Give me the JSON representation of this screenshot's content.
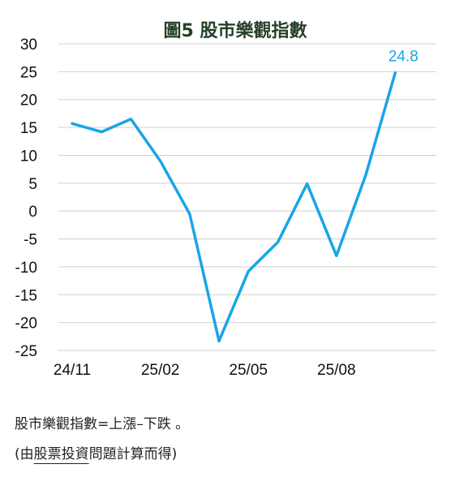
{
  "chart_data": {
    "type": "line",
    "title": "圖5  股市樂觀指數",
    "xlabel": "",
    "ylabel": "",
    "x": [
      "24/11",
      "24/12",
      "25/01",
      "25/02",
      "25/03",
      "25/04",
      "25/05",
      "25/06",
      "25/07",
      "25/08",
      "25/09",
      "25/10"
    ],
    "xtick_labels": [
      "24/11",
      "25/02",
      "25/05",
      "25/08"
    ],
    "series": [
      {
        "values": [
          15.7,
          14.2,
          16.5,
          9.0,
          -0.5,
          -23.3,
          -10.8,
          -5.6,
          4.9,
          -8.0,
          6.5,
          24.8
        ],
        "color": "#19a5e6"
      }
    ],
    "ylim": [
      -25,
      30
    ],
    "yticks": [
      30,
      25,
      20,
      15,
      10,
      5,
      0,
      -5,
      -10,
      -15,
      -20,
      -25
    ],
    "grid": true,
    "legend": "none",
    "annotations": [
      {
        "x": "25/10",
        "text": "24.8"
      }
    ]
  },
  "notes": {
    "line1": "股市樂觀指數=上漲–下跌 。",
    "line2_prefix": "(由",
    "line2_underlined": "股票投資",
    "line2_suffix": "問題計算而得)"
  }
}
